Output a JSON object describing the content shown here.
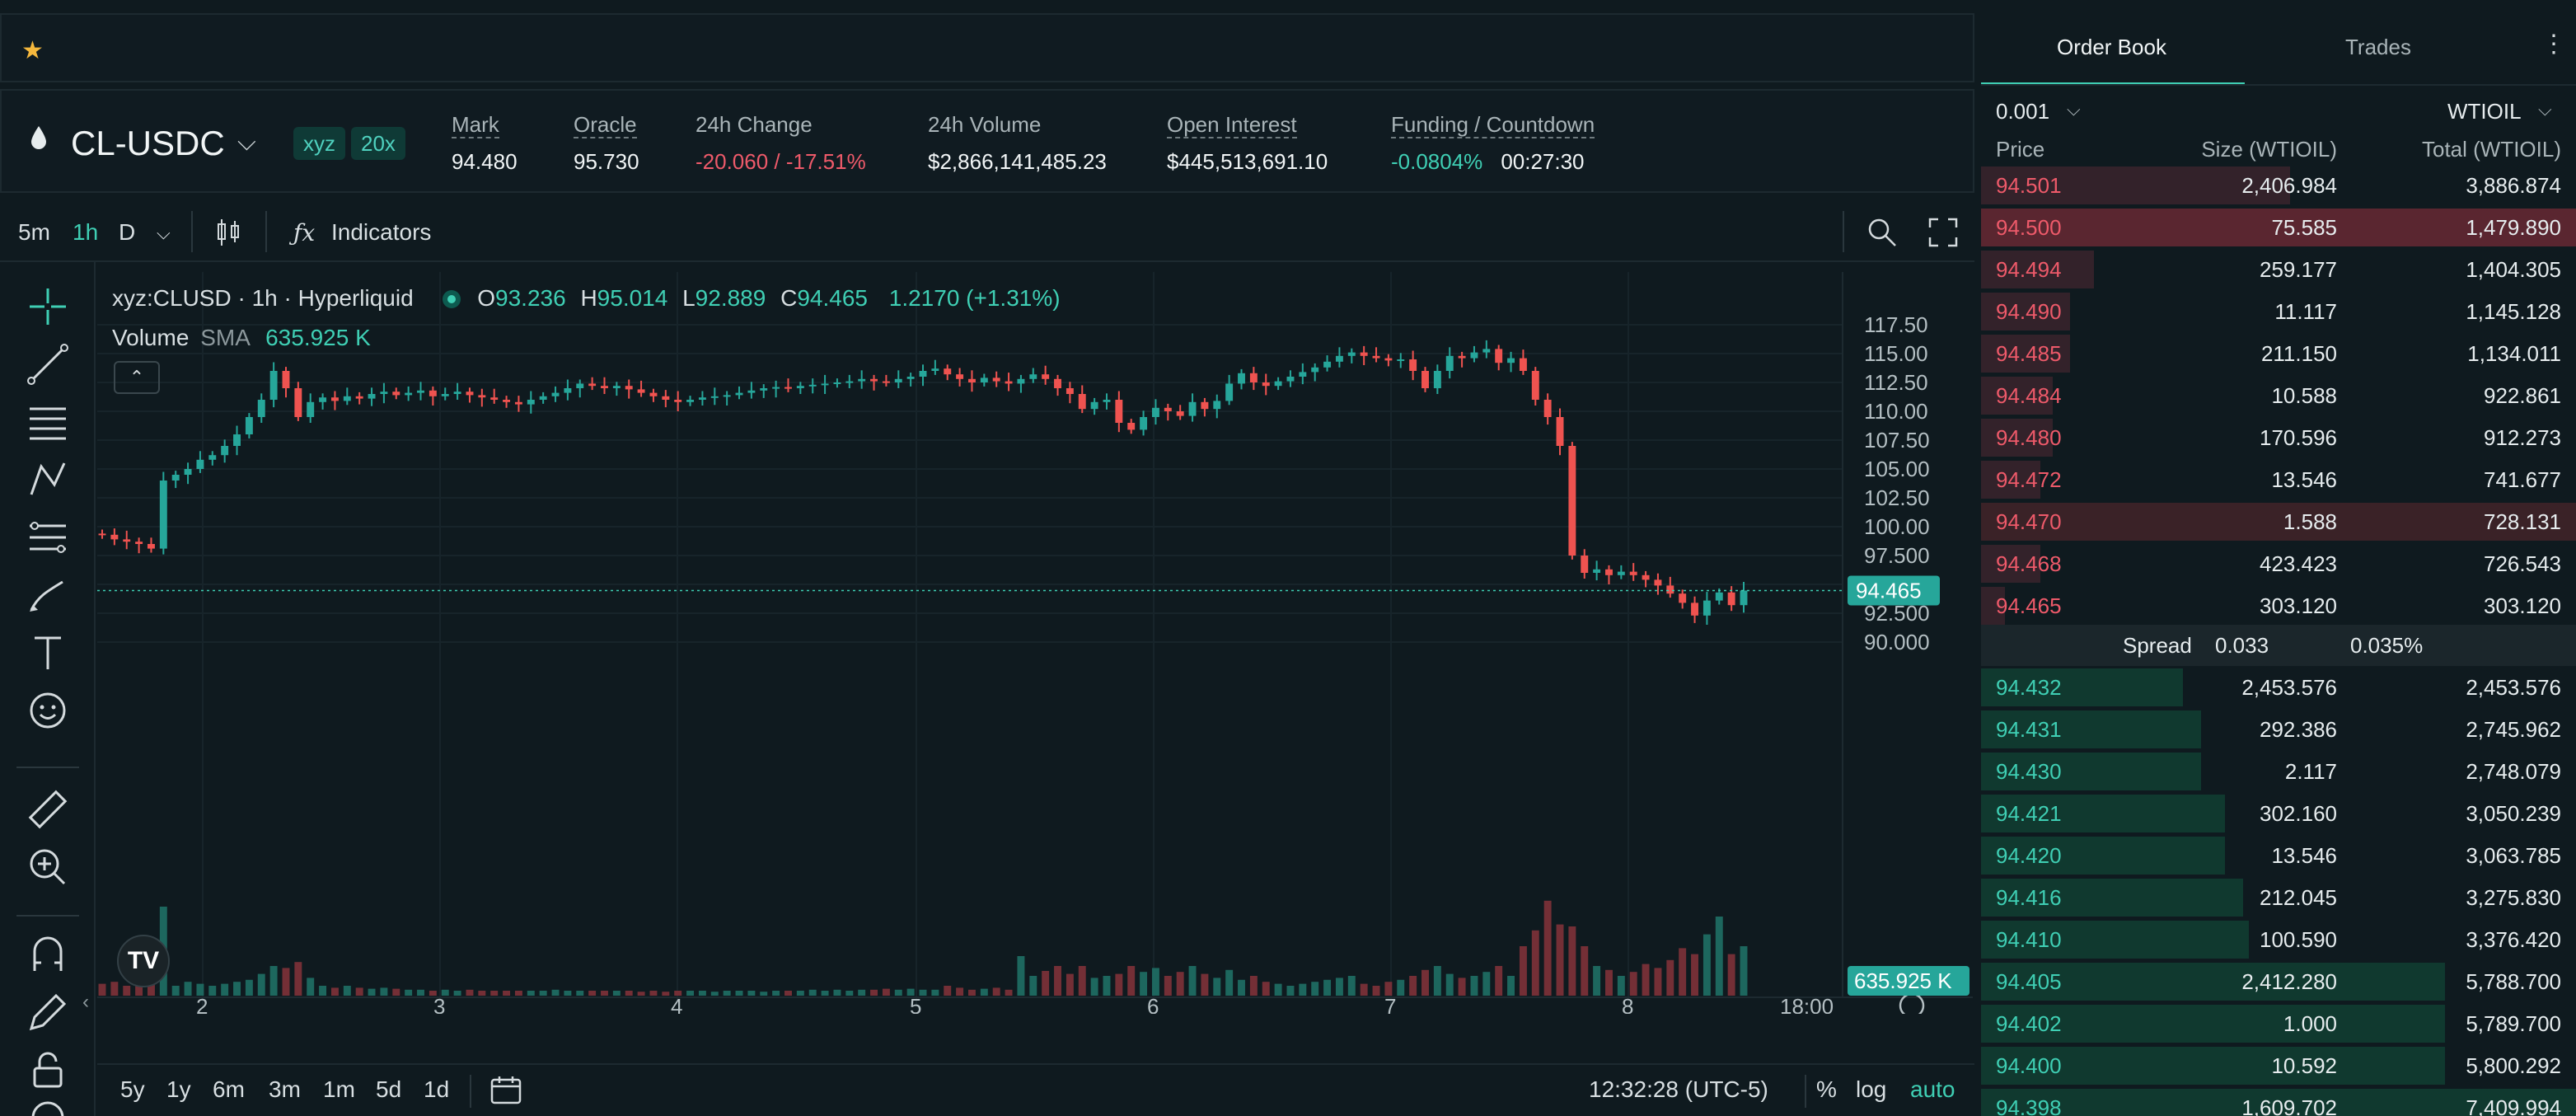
{
  "symbol": {
    "name": "CL-USDC",
    "badges": [
      "xyz",
      "20x"
    ]
  },
  "stats": [
    {
      "label": "Mark",
      "value": "94.480",
      "dashed": true
    },
    {
      "label": "Oracle",
      "value": "95.730",
      "dashed": true
    },
    {
      "label": "24h Change",
      "value": "-20.060 / -17.51%",
      "dashed": false,
      "tone": "neg"
    },
    {
      "label": "24h Volume",
      "value": "$2,866,141,485.23",
      "dashed": false
    },
    {
      "label": "Open Interest",
      "value": "$445,513,691.10",
      "dashed": true
    },
    {
      "label": "Funding / Countdown",
      "value": "-0.0804%",
      "value2": "00:27:30",
      "dashed": true,
      "tone": "pos"
    }
  ],
  "toolbar": {
    "intervals": [
      "5m",
      "1h",
      "D"
    ],
    "active_interval": "1h",
    "indicators_label": "Indicators"
  },
  "legend": {
    "symbol_line": "xyz:CLUSD · 1h · Hyperliquid",
    "o_label": "O",
    "o": "93.236",
    "h_label": "H",
    "h": "95.014",
    "l_label": "L",
    "l": "92.889",
    "c_label": "C",
    "c": "94.465",
    "change": "1.2170 (+1.31%)",
    "volume_label": "Volume",
    "sma_label": "SMA",
    "volume_value": "635.925 K"
  },
  "chart_data": {
    "type": "candlestick",
    "y_ticks": [
      "117.50",
      "115.00",
      "112.50",
      "110.00",
      "107.50",
      "105.00",
      "102.50",
      "100.00",
      "97.500",
      "95.000",
      "92.500",
      "90.000"
    ],
    "x_ticks": [
      "2",
      "3",
      "4",
      "5",
      "6",
      "7",
      "8",
      "18:00"
    ],
    "last_price": "94.465",
    "volume_label": "635.925 K",
    "closes": [
      99.3,
      98.9,
      98.7,
      98.5,
      98.1,
      104.0,
      104.5,
      105.0,
      105.8,
      106.2,
      107.0,
      108.0,
      109.5,
      111.0,
      113.5,
      112.0,
      109.5,
      110.8,
      111.2,
      110.9,
      111.3,
      111.1,
      111.5,
      111.7,
      111.4,
      111.6,
      111.8,
      111.3,
      111.5,
      111.7,
      111.4,
      111.2,
      111.0,
      110.8,
      110.6,
      111.0,
      111.3,
      111.6,
      112.0,
      112.4,
      112.2,
      112.0,
      112.2,
      111.9,
      111.6,
      111.3,
      111.0,
      110.8,
      111.0,
      111.2,
      111.3,
      111.4,
      111.6,
      111.8,
      112.0,
      112.1,
      112.0,
      112.2,
      112.3,
      112.4,
      112.5,
      112.6,
      112.8,
      112.6,
      112.5,
      112.8,
      113.0,
      113.5,
      113.7,
      113.2,
      112.8,
      112.5,
      112.9,
      112.6,
      112.4,
      112.8,
      113.2,
      112.8,
      112.0,
      111.5,
      110.2,
      110.8,
      111.0,
      109.0,
      108.4,
      109.5,
      110.3,
      110.0,
      109.6,
      110.8,
      110.2,
      110.9,
      112.4,
      113.3,
      112.5,
      112.2,
      112.6,
      113.0,
      113.4,
      113.8,
      114.3,
      114.8,
      115.1,
      114.8,
      114.6,
      114.4,
      114.5,
      113.5,
      112.0,
      113.5,
      114.8,
      114.6,
      115.1,
      115.4,
      114.2,
      114.6,
      113.5,
      111.0,
      109.5,
      107.0,
      97.5,
      96.0,
      96.3,
      95.8,
      96.1,
      95.8,
      95.4,
      94.9,
      94.2,
      93.4,
      92.3,
      93.6,
      94.3,
      93.2,
      94.465
    ],
    "volumes": [
      0.12,
      0.14,
      0.1,
      0.16,
      0.2,
      0.9,
      0.1,
      0.14,
      0.12,
      0.1,
      0.12,
      0.14,
      0.16,
      0.22,
      0.3,
      0.28,
      0.34,
      0.18,
      0.1,
      0.08,
      0.1,
      0.08,
      0.07,
      0.08,
      0.07,
      0.06,
      0.06,
      0.05,
      0.06,
      0.05,
      0.06,
      0.05,
      0.05,
      0.05,
      0.05,
      0.05,
      0.05,
      0.06,
      0.05,
      0.05,
      0.05,
      0.05,
      0.05,
      0.05,
      0.04,
      0.05,
      0.04,
      0.05,
      0.05,
      0.05,
      0.04,
      0.05,
      0.05,
      0.05,
      0.04,
      0.05,
      0.05,
      0.05,
      0.06,
      0.05,
      0.06,
      0.05,
      0.06,
      0.06,
      0.07,
      0.06,
      0.07,
      0.06,
      0.06,
      0.1,
      0.08,
      0.06,
      0.07,
      0.08,
      0.06,
      0.4,
      0.2,
      0.25,
      0.3,
      0.22,
      0.3,
      0.18,
      0.2,
      0.22,
      0.3,
      0.24,
      0.28,
      0.2,
      0.24,
      0.3,
      0.22,
      0.18,
      0.26,
      0.16,
      0.2,
      0.14,
      0.12,
      0.1,
      0.12,
      0.14,
      0.16,
      0.18,
      0.2,
      0.12,
      0.1,
      0.14,
      0.16,
      0.2,
      0.26,
      0.3,
      0.22,
      0.18,
      0.2,
      0.24,
      0.3,
      0.2,
      0.5,
      0.66,
      0.96,
      0.72,
      0.7,
      0.5,
      0.3,
      0.26,
      0.2,
      0.24,
      0.32,
      0.28,
      0.36,
      0.48,
      0.42,
      0.62,
      0.8,
      0.42,
      0.5,
      0.32,
      0.2
    ]
  },
  "left_axis_arrow": "‹",
  "bottom_bar": {
    "ranges": [
      "5y",
      "1y",
      "6m",
      "3m",
      "1m",
      "5d",
      "1d"
    ],
    "time": "12:32:28 (UTC-5)",
    "pct": "%",
    "log": "log",
    "auto": "auto"
  },
  "orderbook": {
    "tabs": [
      "Order Book",
      "Trades"
    ],
    "tick": "0.001",
    "unit": "WTIOIL",
    "headers": [
      "Price",
      "Size (WTIOIL)",
      "Total (WTIOIL)"
    ],
    "asks": [
      {
        "p": "94.501",
        "s": "2,406.984",
        "t": "3,886.874",
        "depth": 0.52
      },
      {
        "p": "94.500",
        "s": "75.585",
        "t": "1,479.890",
        "depth": 1.0,
        "hl": true
      },
      {
        "p": "94.494",
        "s": "259.177",
        "t": "1,404.305",
        "depth": 0.19
      },
      {
        "p": "94.490",
        "s": "11.117",
        "t": "1,145.128",
        "depth": 0.15
      },
      {
        "p": "94.485",
        "s": "211.150",
        "t": "1,134.011",
        "depth": 0.15
      },
      {
        "p": "94.484",
        "s": "10.588",
        "t": "922.861",
        "depth": 0.12
      },
      {
        "p": "94.480",
        "s": "170.596",
        "t": "912.273",
        "depth": 0.12
      },
      {
        "p": "94.472",
        "s": "13.546",
        "t": "741.677",
        "depth": 0.1
      },
      {
        "p": "94.470",
        "s": "1.588",
        "t": "728.131",
        "depth": 1.0,
        "hl2": true
      },
      {
        "p": "94.468",
        "s": "423.423",
        "t": "726.543",
        "depth": 0.1
      },
      {
        "p": "94.465",
        "s": "303.120",
        "t": "303.120",
        "depth": 0.04
      }
    ],
    "spread": {
      "label": "Spread",
      "value": "0.033",
      "pct": "0.035%"
    },
    "bids": [
      {
        "p": "94.432",
        "s": "2,453.576",
        "t": "2,453.576",
        "depth": 0.34
      },
      {
        "p": "94.431",
        "s": "292.386",
        "t": "2,745.962",
        "depth": 0.37
      },
      {
        "p": "94.430",
        "s": "2.117",
        "t": "2,748.079",
        "depth": 0.37
      },
      {
        "p": "94.421",
        "s": "302.160",
        "t": "3,050.239",
        "depth": 0.41
      },
      {
        "p": "94.420",
        "s": "13.546",
        "t": "3,063.785",
        "depth": 0.41
      },
      {
        "p": "94.416",
        "s": "212.045",
        "t": "3,275.830",
        "depth": 0.44
      },
      {
        "p": "94.410",
        "s": "100.590",
        "t": "3,376.420",
        "depth": 0.45
      },
      {
        "p": "94.405",
        "s": "2,412.280",
        "t": "5,788.700",
        "depth": 0.78
      },
      {
        "p": "94.402",
        "s": "1.000",
        "t": "5,789.700",
        "depth": 0.78
      },
      {
        "p": "94.400",
        "s": "10.592",
        "t": "5,800.292",
        "depth": 0.78
      },
      {
        "p": "94.398",
        "s": "1,609.702",
        "t": "7,409.994",
        "depth": 1.0
      }
    ]
  }
}
